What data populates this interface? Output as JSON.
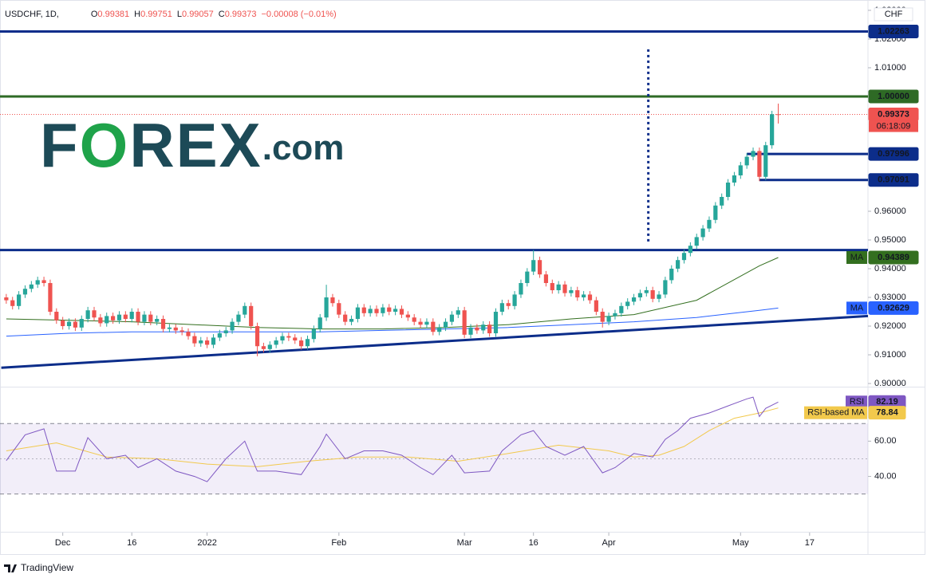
{
  "chart_data": {
    "type": "candlestick",
    "symbol_legend": {
      "symbol": "USDCHF, 1D,",
      "items": [
        {
          "key": "O",
          "value": "0.99381"
        },
        {
          "key": "H",
          "value": "0.99751"
        },
        {
          "key": "L",
          "value": "0.99057"
        },
        {
          "key": "C",
          "value": "0.99373"
        }
      ],
      "change": "−0.00008 (−0.01%)"
    },
    "currency": "CHF",
    "logo": {
      "parts": [
        "F",
        "O",
        "REX",
        ".com"
      ]
    },
    "up_color": "#26a69a",
    "down_color": "#ef5350",
    "open": [
      0.93,
      0.929,
      0.927,
      0.931,
      0.933,
      0.9345,
      0.936,
      0.935,
      0.925,
      0.922,
      0.92,
      0.9215,
      0.9195,
      0.9225,
      0.9255,
      0.923,
      0.921,
      0.9235,
      0.922,
      0.924,
      0.9225,
      0.925,
      0.9215,
      0.924,
      0.9215,
      0.9225,
      0.919,
      0.9195,
      0.9185,
      0.918,
      0.9165,
      0.914,
      0.915,
      0.9135,
      0.916,
      0.9175,
      0.9185,
      0.9215,
      0.924,
      0.927,
      0.92,
      0.913,
      0.912,
      0.9135,
      0.915,
      0.9165,
      0.916,
      0.915,
      0.913,
      0.9155,
      0.919,
      0.923,
      0.93,
      0.928,
      0.924,
      0.9215,
      0.9225,
      0.9265,
      0.9245,
      0.926,
      0.9245,
      0.9265,
      0.925,
      0.926,
      0.924,
      0.923,
      0.9215,
      0.9205,
      0.9215,
      0.918,
      0.9195,
      0.9215,
      0.924,
      0.9255,
      0.917,
      0.9195,
      0.9185,
      0.9205,
      0.9175,
      0.925,
      0.928,
      0.927,
      0.931,
      0.935,
      0.939,
      0.943,
      0.938,
      0.935,
      0.9325,
      0.9345,
      0.9315,
      0.9325,
      0.93,
      0.931,
      0.929,
      0.925,
      0.9215,
      0.9235,
      0.9245,
      0.927,
      0.9285,
      0.93,
      0.9315,
      0.9325,
      0.9295,
      0.931,
      0.936,
      0.94,
      0.943,
      0.9455,
      0.948,
      0.951,
      0.954,
      0.957,
      0.962,
      0.965,
      0.97,
      0.9725,
      0.976,
      0.979,
      0.981,
      0.972,
      0.983,
      0.99381
    ],
    "high": [
      0.9312,
      0.9302,
      0.9322,
      0.9342,
      0.9357,
      0.9372,
      0.9372,
      0.9362,
      0.9262,
      0.9232,
      0.9227,
      0.9227,
      0.9237,
      0.9267,
      0.9267,
      0.9242,
      0.9247,
      0.9247,
      0.9252,
      0.9252,
      0.9262,
      0.9262,
      0.9252,
      0.9252,
      0.9237,
      0.9237,
      0.9207,
      0.9207,
      0.9197,
      0.9192,
      0.9177,
      0.9162,
      0.9162,
      0.9172,
      0.9187,
      0.9197,
      0.9227,
      0.9252,
      0.9282,
      0.9282,
      0.9212,
      0.9142,
      0.9147,
      0.9162,
      0.9177,
      0.9177,
      0.9172,
      0.9162,
      0.9167,
      0.9202,
      0.9242,
      0.9344,
      0.9312,
      0.9292,
      0.9252,
      0.9237,
      0.9277,
      0.9277,
      0.9272,
      0.9272,
      0.9277,
      0.9277,
      0.9272,
      0.9272,
      0.9252,
      0.9242,
      0.9227,
      0.9227,
      0.9227,
      0.9207,
      0.9227,
      0.9252,
      0.9267,
      0.9267,
      0.9207,
      0.9207,
      0.9217,
      0.9217,
      0.9262,
      0.9292,
      0.9292,
      0.9322,
      0.9362,
      0.9402,
      0.9465,
      0.9442,
      0.9392,
      0.9362,
      0.9357,
      0.9357,
      0.9337,
      0.9337,
      0.9322,
      0.9322,
      0.9302,
      0.9262,
      0.9247,
      0.9257,
      0.9282,
      0.9297,
      0.9312,
      0.9327,
      0.9337,
      0.9337,
      0.9322,
      0.9372,
      0.9412,
      0.9442,
      0.9467,
      0.9492,
      0.9522,
      0.9552,
      0.9582,
      0.9632,
      0.9662,
      0.9712,
      0.9737,
      0.9772,
      0.9802,
      0.9822,
      0.9822,
      0.9842,
      0.995,
      0.99751
    ],
    "low": [
      0.9278,
      0.9258,
      0.9258,
      0.9298,
      0.9318,
      0.9333,
      0.9338,
      0.9238,
      0.9208,
      0.9188,
      0.9188,
      0.9183,
      0.9183,
      0.9213,
      0.9218,
      0.9198,
      0.9198,
      0.9208,
      0.9208,
      0.9213,
      0.9213,
      0.9203,
      0.9203,
      0.9203,
      0.9203,
      0.9178,
      0.9178,
      0.9173,
      0.9168,
      0.9153,
      0.9128,
      0.9128,
      0.9123,
      0.9123,
      0.9148,
      0.9163,
      0.9173,
      0.9203,
      0.9228,
      0.9188,
      0.9095,
      0.9108,
      0.9108,
      0.9123,
      0.9138,
      0.9148,
      0.9138,
      0.9118,
      0.9118,
      0.9143,
      0.9178,
      0.9218,
      0.9268,
      0.9228,
      0.9203,
      0.9203,
      0.9213,
      0.9233,
      0.9233,
      0.9233,
      0.9233,
      0.9238,
      0.9238,
      0.9228,
      0.9218,
      0.9203,
      0.9193,
      0.9193,
      0.9168,
      0.9168,
      0.9183,
      0.9203,
      0.9228,
      0.9158,
      0.9158,
      0.9173,
      0.9173,
      0.9163,
      0.9163,
      0.9238,
      0.9258,
      0.9258,
      0.9298,
      0.9338,
      0.9378,
      0.9368,
      0.9338,
      0.9313,
      0.9313,
      0.9303,
      0.9303,
      0.9288,
      0.9288,
      0.9278,
      0.9238,
      0.9195,
      0.9203,
      0.9223,
      0.9233,
      0.9258,
      0.9273,
      0.9288,
      0.9303,
      0.9283,
      0.9283,
      0.9298,
      0.9348,
      0.9388,
      0.9418,
      0.9443,
      0.9468,
      0.9498,
      0.9528,
      0.9558,
      0.9608,
      0.9638,
      0.9688,
      0.9713,
      0.9748,
      0.9778,
      0.9705,
      0.9708,
      0.9818,
      0.99057
    ],
    "close": [
      0.929,
      0.927,
      0.931,
      0.933,
      0.9345,
      0.936,
      0.935,
      0.925,
      0.922,
      0.92,
      0.9215,
      0.9195,
      0.9225,
      0.9255,
      0.923,
      0.921,
      0.9235,
      0.922,
      0.924,
      0.9225,
      0.925,
      0.9215,
      0.924,
      0.9215,
      0.9225,
      0.919,
      0.9195,
      0.9185,
      0.918,
      0.9165,
      0.914,
      0.915,
      0.9135,
      0.916,
      0.9175,
      0.9185,
      0.9215,
      0.924,
      0.927,
      0.92,
      0.913,
      0.912,
      0.9135,
      0.915,
      0.9165,
      0.916,
      0.915,
      0.913,
      0.9155,
      0.919,
      0.923,
      0.93,
      0.928,
      0.924,
      0.9215,
      0.9225,
      0.9265,
      0.9245,
      0.926,
      0.9245,
      0.9265,
      0.925,
      0.926,
      0.924,
      0.923,
      0.9215,
      0.9205,
      0.9215,
      0.918,
      0.9195,
      0.9215,
      0.924,
      0.9255,
      0.917,
      0.9195,
      0.9185,
      0.9205,
      0.9175,
      0.925,
      0.928,
      0.927,
      0.931,
      0.935,
      0.939,
      0.943,
      0.938,
      0.935,
      0.9325,
      0.9345,
      0.9315,
      0.9325,
      0.93,
      0.931,
      0.929,
      0.925,
      0.9215,
      0.9235,
      0.9245,
      0.927,
      0.9285,
      0.93,
      0.9315,
      0.9325,
      0.9295,
      0.931,
      0.936,
      0.94,
      0.943,
      0.9455,
      0.948,
      0.951,
      0.954,
      0.957,
      0.962,
      0.965,
      0.97,
      0.9725,
      0.976,
      0.979,
      0.981,
      0.972,
      0.983,
      0.99381,
      0.99373
    ],
    "xlim": [
      -1,
      137.3
    ],
    "xticks": [
      {
        "value": 9,
        "label": "Dec"
      },
      {
        "value": 20,
        "label": "16"
      },
      {
        "value": 32,
        "label": "2022"
      },
      {
        "value": 53,
        "label": "Feb"
      },
      {
        "value": 73,
        "label": "Mar"
      },
      {
        "value": 84,
        "label": "16"
      },
      {
        "value": 96,
        "label": "Apr"
      },
      {
        "value": 117,
        "label": "May"
      },
      {
        "value": 128,
        "label": "17"
      }
    ],
    "ylim": [
      0.8989,
      1.0336
    ],
    "yticks": [
      {
        "value": 0.9,
        "label": "0.90000"
      },
      {
        "value": 0.91,
        "label": "0.91000"
      },
      {
        "value": 0.92,
        "label": "0.92000"
      },
      {
        "value": 0.93,
        "label": "0.93000"
      },
      {
        "value": 0.94,
        "label": "0.94000"
      },
      {
        "value": 0.95,
        "label": "0.95000"
      },
      {
        "value": 0.96,
        "label": "0.96000"
      },
      {
        "value": 1.01,
        "label": "1.01000"
      },
      {
        "value": 1.02,
        "label": "1.02000"
      },
      {
        "value": 1.03,
        "label": "1.03000"
      }
    ],
    "moving_averages": [
      {
        "name": "MA",
        "color": "#336f1f",
        "value_label": "0.94389",
        "x": [
          0,
          10,
          20,
          30,
          40,
          50,
          60,
          70,
          80,
          90,
          100,
          110,
          120,
          123
        ],
        "values": [
          0.9225,
          0.922,
          0.9215,
          0.9205,
          0.9195,
          0.919,
          0.919,
          0.9195,
          0.9205,
          0.9225,
          0.924,
          0.929,
          0.941,
          0.94389
        ]
      },
      {
        "name": "MA",
        "color": "#2962ff",
        "value_label": "0.92629",
        "x": [
          0,
          10,
          20,
          30,
          40,
          50,
          60,
          70,
          80,
          90,
          100,
          110,
          120,
          123
        ],
        "values": [
          0.9165,
          0.9175,
          0.918,
          0.918,
          0.918,
          0.918,
          0.9185,
          0.919,
          0.9195,
          0.9205,
          0.9215,
          0.923,
          0.9255,
          0.92629
        ]
      }
    ],
    "levels": [
      {
        "value": 1.02263,
        "label": "1.02263",
        "color": "#0c2d8a"
      },
      {
        "value": 1.0,
        "label": "1.00000",
        "color": "#2e6a25"
      },
      {
        "value": 0.97996,
        "label": "0.97996",
        "color": "#0c2d8a",
        "x_start": 118
      },
      {
        "value": 0.97091,
        "label": "0.97091",
        "color": "#0c2d8a",
        "x_start": 120
      },
      {
        "value": 0.9465,
        "color": "#0c2d8a"
      }
    ],
    "trendline": {
      "color": "#0c2d8a",
      "x": [
        -0.8,
        137.3
      ],
      "values": [
        0.9055,
        0.9235
      ]
    },
    "vertical_marker": {
      "color": "#0c2d8a",
      "x": 102.3,
      "values": [
        1.0164,
        0.949
      ]
    },
    "last_price": {
      "value": 0.99373,
      "label": "0.99373",
      "countdown": "06:18:09",
      "color": "#ef5350"
    },
    "rsi": {
      "name": "RSI",
      "color": "#7e57c2",
      "value_label": "82.19",
      "x": [
        0,
        3,
        6,
        8,
        11,
        13,
        16,
        19,
        21,
        24,
        27,
        30,
        32,
        35,
        38,
        40,
        43,
        47,
        50,
        51,
        54,
        57,
        60,
        63,
        66,
        68,
        71,
        73,
        77,
        79,
        82,
        84,
        86,
        89,
        92,
        95,
        97,
        100,
        103,
        105,
        107,
        109,
        112,
        115,
        118,
        119,
        120,
        121,
        123
      ],
      "values": [
        49,
        63.6,
        67,
        43,
        43,
        62,
        50,
        52,
        45,
        50,
        43,
        40,
        37,
        50,
        60,
        43,
        43,
        41,
        57,
        64,
        50,
        54.5,
        54.5,
        52,
        45,
        41,
        52,
        42,
        43,
        54.5,
        63.6,
        66,
        57,
        52,
        57,
        42,
        45,
        53,
        51,
        61,
        66,
        73,
        76,
        80,
        84,
        85,
        74,
        78.6,
        82.19
      ],
      "ma": {
        "name": "RSI-based MA",
        "color": "#f2c94c",
        "value_label": "78.84",
        "x": [
          0,
          8,
          16,
          24,
          32,
          40,
          48,
          56,
          64,
          72,
          80,
          88,
          96,
          100,
          104,
          108,
          112,
          116,
          120,
          123
        ],
        "values": [
          54.5,
          59,
          51,
          50,
          47,
          45.5,
          48.6,
          51,
          51,
          48.6,
          53,
          57.7,
          54.5,
          51,
          52,
          57,
          66,
          73,
          76,
          78.84
        ]
      },
      "ylim": [
        9.5,
        90
      ],
      "yticks": [
        {
          "value": 60,
          "label": "60.00"
        },
        {
          "value": 40,
          "label": "40.00"
        }
      ],
      "bands": [
        30,
        50,
        70
      ]
    },
    "footer": "TradingView"
  }
}
